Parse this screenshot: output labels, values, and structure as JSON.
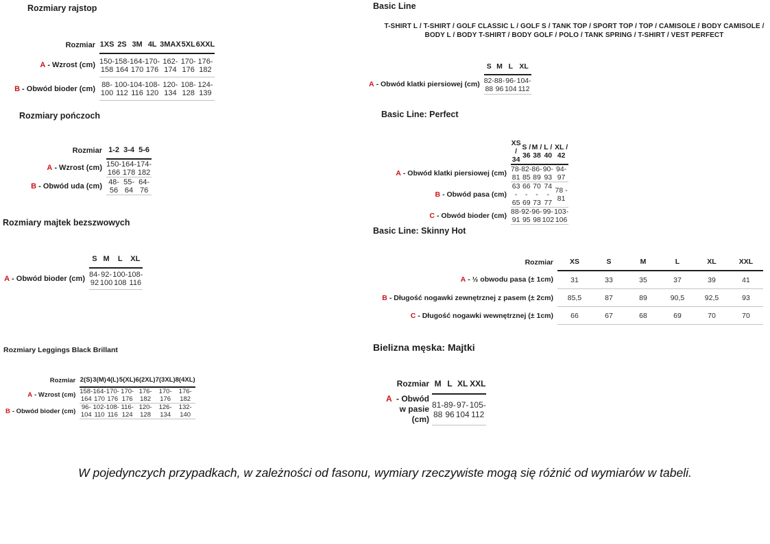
{
  "page": {
    "accent_red": "#cc1417",
    "text_color": "#1d1d1b",
    "note": "W pojedynczych przypadkach, w zależności od fasonu, wymiary rzeczywiste mogą się różnić od wymiarów w tabeli."
  },
  "tables": [
    {
      "title": "Rozmiary rajstop",
      "size_label": "Rozmiar",
      "columns": [
        "1XS",
        "2S",
        "3M",
        "4L",
        "3MAX",
        "5XL",
        "6XXL"
      ],
      "rows": [
        {
          "letter": "A",
          "label": "- Wzrost (cm)",
          "values": [
            "150-158",
            "158-164",
            "164-170",
            "170-176",
            "162-174",
            "170-176",
            "176-182"
          ]
        },
        {
          "letter": "B",
          "label": "- Obwód bioder (cm)",
          "values": [
            "88-100",
            "100-112",
            "104-116",
            "108-120",
            "120-134",
            "108-128",
            "124-139"
          ]
        }
      ]
    },
    {
      "title": "Rozmiary pończoch",
      "size_label": "Rozmiar",
      "columns": [
        "1-2",
        "3-4",
        "5-6"
      ],
      "rows": [
        {
          "letter": "A",
          "label": "- Wzrost (cm)",
          "values": [
            "150-166",
            "164-178",
            "174-182"
          ]
        },
        {
          "letter": "B",
          "label": "- Obwód uda (cm)",
          "values": [
            "48-56",
            "55-64",
            "64-76"
          ]
        }
      ]
    },
    {
      "title": "Rozmiary majtek bezszwowych",
      "size_label": "",
      "columns": [
        "S",
        "M",
        "L",
        "XL"
      ],
      "rows": [
        {
          "letter": "A",
          "label": "- Obwód bioder (cm)",
          "values": [
            "84-92",
            "92-100",
            "100-108",
            "108-116"
          ]
        }
      ]
    },
    {
      "title": "Rozmiary Leggings Black Brillant",
      "size_label": "Rozmiar",
      "columns": [
        "2(S)",
        "3(M)",
        "4(L)",
        "5(XL)",
        "6(2XL)",
        "7(3XL)",
        "8(4XL)"
      ],
      "rows": [
        {
          "letter": "A",
          "label": "- Wzrost (cm)",
          "values": [
            "158-164",
            "164-170",
            "170-176",
            "170-176",
            "176-182",
            "170-176",
            "176-182"
          ]
        },
        {
          "letter": "B",
          "label": "- Obwód bioder (cm)",
          "values": [
            "96-104",
            "102-110",
            "108-116",
            "116-124",
            "120-128",
            "126-134",
            "132-140"
          ]
        }
      ]
    },
    {
      "title": "Basic Line",
      "subtitle": "T-SHIRT L / T-SHIRT / GOLF CLASSIC L / GOLF S / TANK TOP / SPORT TOP / TOP / CAMISOLE / BODY CAMISOLE / BODY L / BODY T-SHIRT / BODY GOLF / POLO / TANK SPRING / T-SHIRT / VEST PERFECT",
      "size_label": "",
      "columns": [
        "S",
        "M",
        "L",
        "XL"
      ],
      "rows": [
        {
          "letter": "A",
          "label": "- Obwód klatki piersiowej (cm)",
          "values": [
            "82-88",
            "88-96",
            "96-104",
            "104-112"
          ]
        }
      ]
    },
    {
      "title": "Basic Line: Perfect",
      "size_label": "",
      "columns": [
        "XS / 34",
        "S / 36",
        "M / 38",
        "L / 40",
        "XL / 42"
      ],
      "rows": [
        {
          "letter": "A",
          "label": "- Obwód klatki piersiowej (cm)",
          "values": [
            "78-81",
            "82-85",
            "86-89",
            "90-93",
            "94-97"
          ]
        },
        {
          "letter": "B",
          "label": "- Obwód pasa (cm)",
          "values": [
            "63 - 65",
            "66 - 69",
            "70 - 73",
            "74 - 77",
            "78 - 81"
          ]
        },
        {
          "letter": "C",
          "label": "- Obwód bioder (cm)",
          "values": [
            "88-91",
            "92-95",
            "96-98",
            "99-102",
            "103-106"
          ]
        }
      ]
    },
    {
      "title": "Basic Line: Skinny Hot",
      "size_label": "Rozmiar",
      "columns": [
        "XS",
        "S",
        "M",
        "L",
        "XL",
        "XXL"
      ],
      "rows": [
        {
          "letter": "A",
          "label": "- ½ obwodu pasa (± 1cm)",
          "values": [
            "31",
            "33",
            "35",
            "37",
            "39",
            "41"
          ]
        },
        {
          "letter": "B",
          "label": "- Długość nogawki zewnętrznej z pasem (± 2cm)",
          "values": [
            "85,5",
            "87",
            "89",
            "90,5",
            "92,5",
            "93"
          ]
        },
        {
          "letter": "C",
          "label": "- Długość nogawki wewnętrznej (± 1cm)",
          "values": [
            "66",
            "67",
            "68",
            "69",
            "70",
            "70"
          ]
        }
      ]
    },
    {
      "title": "Bielizna męska: Majtki",
      "size_label": "Rozmiar",
      "columns": [
        "M",
        "L",
        "XL",
        "XXL"
      ],
      "rows": [
        {
          "letter": "A",
          "label": "- Obwód w pasie (cm)",
          "values": [
            "81-88",
            "89-96",
            "97-104",
            "105-112"
          ]
        }
      ]
    }
  ]
}
